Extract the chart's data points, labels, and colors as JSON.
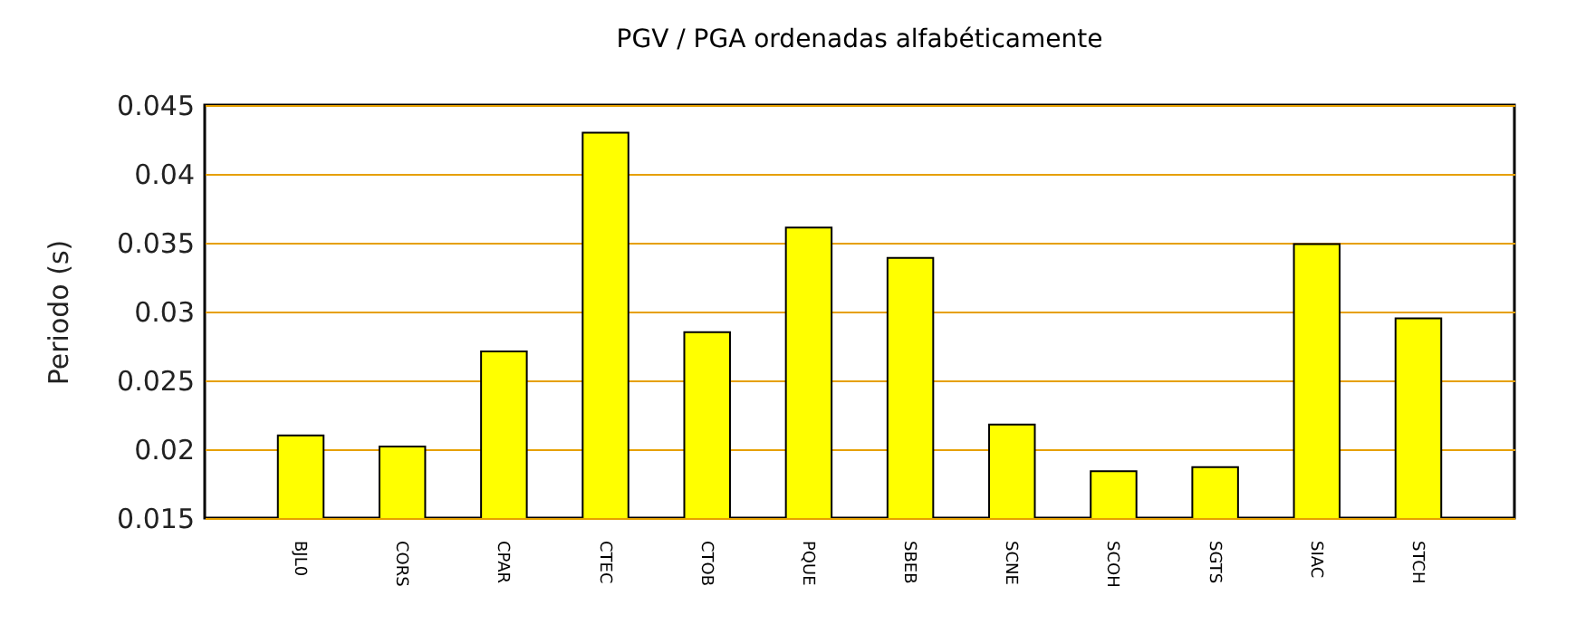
{
  "chart_data": {
    "type": "bar",
    "title": "PGV / PGA ordenadas alfabéticamente",
    "ylabel": "Periodo (s)",
    "categories": [
      "BJL0",
      "CORS",
      "CPAR",
      "CTEC",
      "CTOB",
      "PQUE",
      "SBEB",
      "SCNE",
      "SCOH",
      "SGTS",
      "SIAC",
      "STCH"
    ],
    "values": [
      0.021,
      0.0202,
      0.0271,
      0.043,
      0.0285,
      0.0361,
      0.0339,
      0.0218,
      0.0184,
      0.0187,
      0.0349,
      0.0295
    ],
    "color": "#ffff00",
    "ylim": [
      0.015,
      0.045
    ],
    "yticks": [
      0.015,
      0.02,
      0.025,
      0.03,
      0.035,
      0.04,
      0.045
    ],
    "grid": "y"
  }
}
